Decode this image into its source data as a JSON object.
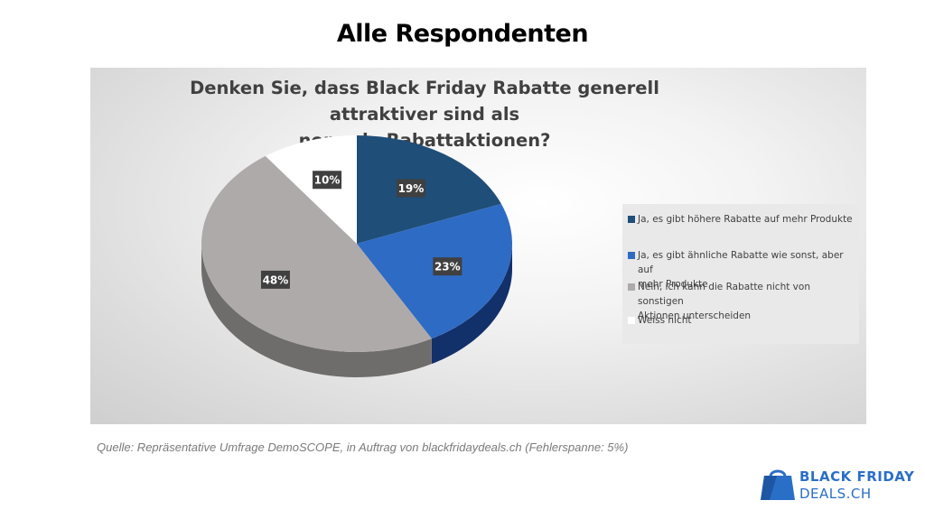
{
  "page_title": "Alle Respondenten",
  "chart_data": {
    "type": "pie",
    "title": "Denken Sie, dass Black Friday Rabatte generell attraktiver sind als normale Rabattaktionen?",
    "title_lines": [
      "Denken Sie, dass Black Friday Rabatte generell attraktiver sind als",
      "normale Rabattaktionen?"
    ],
    "style": "3d",
    "legend_position": "right",
    "slices": [
      {
        "label": "Ja, es gibt höhere Rabatte auf mehr Produkte",
        "legend_lines": [
          "Ja, es gibt höhere Rabatte auf mehr Produkte"
        ],
        "value": 19,
        "display": "19%",
        "color": "#1f4e79",
        "side_color": "#112c45"
      },
      {
        "label": "Ja, es gibt ähnliche Rabatte wie sonst, aber auf mehr Produkte",
        "legend_lines": [
          "Ja, es gibt ähnliche Rabatte wie sonst, aber auf",
          "mehr Produkte"
        ],
        "value": 23,
        "display": "23%",
        "color": "#2e6bc4",
        "side_color": "#12306a"
      },
      {
        "label": "Nein, ich kann die Rabatte nicht von sonstigen Aktionen unterscheiden",
        "legend_lines": [
          "Nein, ich kann die Rabatte nicht von sonstigen",
          "Aktionen unterscheiden"
        ],
        "value": 48,
        "display": "48%",
        "color": "#aeaaaa",
        "side_color": "#6f6c6c"
      },
      {
        "label": "Weiss nicht",
        "legend_lines": [
          "Weiss nicht"
        ],
        "value": 10,
        "display": "10%",
        "color": "#ffffff",
        "side_color": "#d8d8d8"
      }
    ]
  },
  "source_note": "Quelle: Repräsentative Umfrage DemoSCOPE, in Auftrag von blackfridaydeals.ch (Fehlerspanne: 5%)",
  "brand": {
    "line1": "BLACK FRIDAY",
    "line2": "DEALS.CH",
    "color": "#2a6fc7"
  }
}
